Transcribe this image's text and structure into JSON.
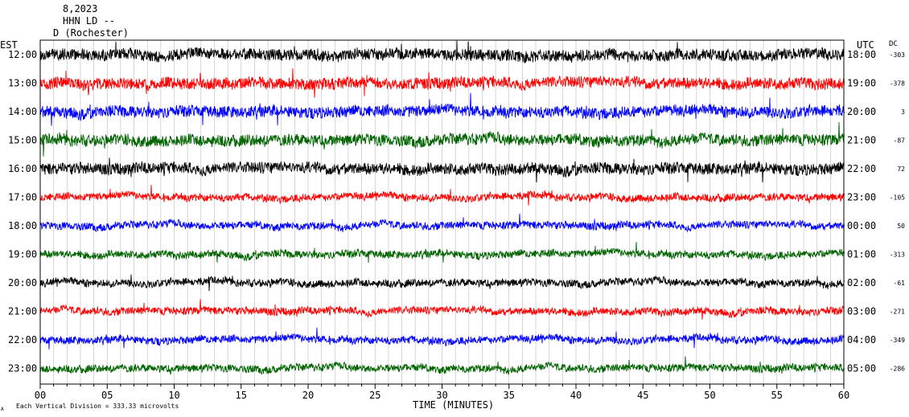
{
  "header": {
    "line1": "8,2023",
    "line2": "HHN LD --",
    "line3": "D (Rochester)"
  },
  "axes": {
    "left_zone": "EST",
    "right_zone": "UTC",
    "dc_header": "DC",
    "xlabel": "TIME (MINUTES)",
    "scale_note": "Each Vertical Division =  333.33 microvolts",
    "corner_mark": "A"
  },
  "chart_data": {
    "type": "line",
    "xlim": [
      0,
      60
    ],
    "x_ticks": [
      "00",
      "05",
      "10",
      "15",
      "20",
      "25",
      "30",
      "35",
      "40",
      "45",
      "50",
      "55",
      "60"
    ],
    "colors": [
      "#000000",
      "#ff0000",
      "#0000ff",
      "#006400"
    ],
    "rows": [
      {
        "est": "12:00",
        "utc": "18:00",
        "dc": "-303",
        "color_index": 0
      },
      {
        "est": "13:00",
        "utc": "19:00",
        "dc": "-378",
        "color_index": 1
      },
      {
        "est": "14:00",
        "utc": "20:00",
        "dc": "3",
        "color_index": 2
      },
      {
        "est": "15:00",
        "utc": "21:00",
        "dc": "-87",
        "color_index": 3
      },
      {
        "est": "16:00",
        "utc": "22:00",
        "dc": "72",
        "color_index": 0
      },
      {
        "est": "17:00",
        "utc": "23:00",
        "dc": "-105",
        "color_index": 1
      },
      {
        "est": "18:00",
        "utc": "00:00",
        "dc": "50",
        "color_index": 2
      },
      {
        "est": "19:00",
        "utc": "01:00",
        "dc": "-313",
        "color_index": 3
      },
      {
        "est": "20:00",
        "utc": "02:00",
        "dc": "-61",
        "color_index": 0
      },
      {
        "est": "21:00",
        "utc": "03:00",
        "dc": "-271",
        "color_index": 1
      },
      {
        "est": "22:00",
        "utc": "04:00",
        "dc": "-349",
        "color_index": 2
      },
      {
        "est": "23:00",
        "utc": "05:00",
        "dc": "-286",
        "color_index": 3
      }
    ]
  }
}
